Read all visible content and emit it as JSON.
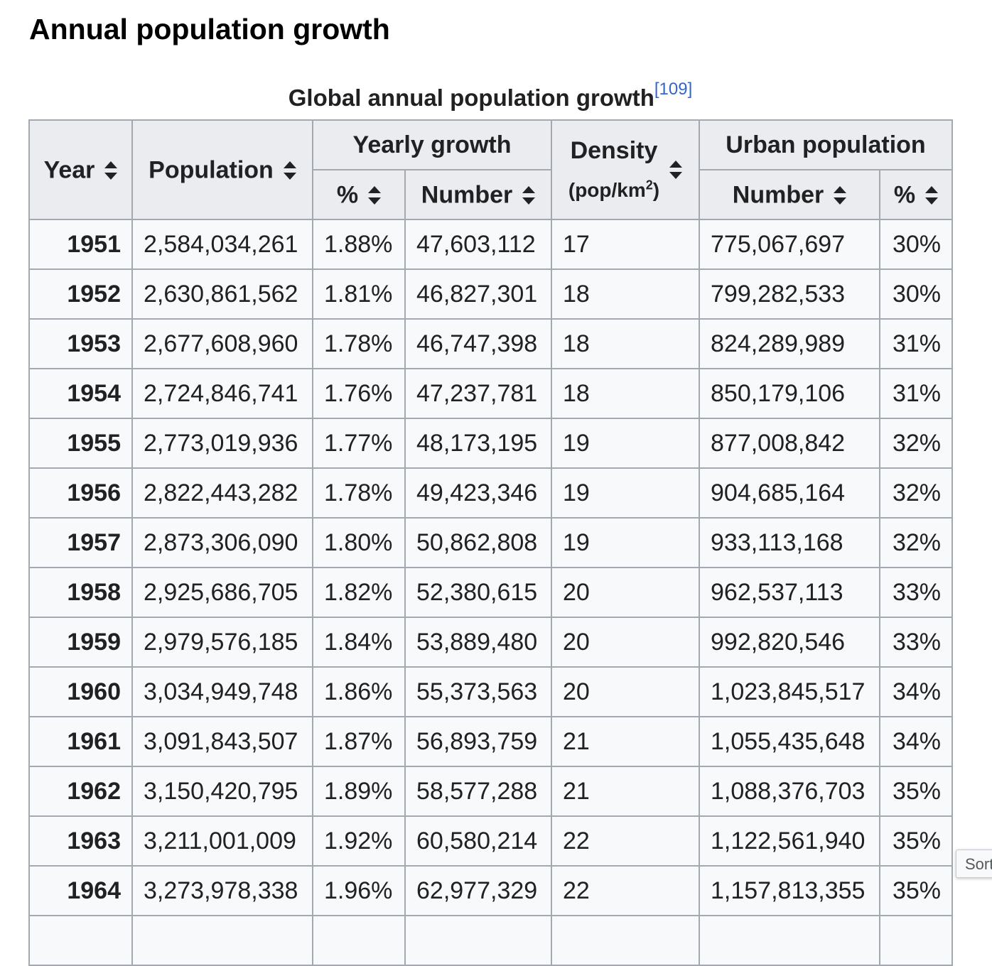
{
  "heading": "Annual population growth",
  "caption": {
    "text": "Global annual population growth",
    "ref": "[109]"
  },
  "headers": {
    "year": "Year",
    "population": "Population",
    "yearly_growth": "Yearly growth",
    "yearly_pct": "%",
    "yearly_number": "Number",
    "density": "Density",
    "density_unit_prefix": "(pop/km",
    "density_unit_sup": "2",
    "density_unit_suffix": ")",
    "urban_population": "Urban population",
    "urban_number": "Number",
    "urban_pct": "%"
  },
  "rows": [
    {
      "year": "1951",
      "population": "2,584,034,261",
      "growth_pct": "1.88%",
      "growth_number": "47,603,112",
      "density": "17",
      "urban_number": "775,067,697",
      "urban_pct": "30%"
    },
    {
      "year": "1952",
      "population": "2,630,861,562",
      "growth_pct": "1.81%",
      "growth_number": "46,827,301",
      "density": "18",
      "urban_number": "799,282,533",
      "urban_pct": "30%"
    },
    {
      "year": "1953",
      "population": "2,677,608,960",
      "growth_pct": "1.78%",
      "growth_number": "46,747,398",
      "density": "18",
      "urban_number": "824,289,989",
      "urban_pct": "31%"
    },
    {
      "year": "1954",
      "population": "2,724,846,741",
      "growth_pct": "1.76%",
      "growth_number": "47,237,781",
      "density": "18",
      "urban_number": "850,179,106",
      "urban_pct": "31%"
    },
    {
      "year": "1955",
      "population": "2,773,019,936",
      "growth_pct": "1.77%",
      "growth_number": "48,173,195",
      "density": "19",
      "urban_number": "877,008,842",
      "urban_pct": "32%"
    },
    {
      "year": "1956",
      "population": "2,822,443,282",
      "growth_pct": "1.78%",
      "growth_number": "49,423,346",
      "density": "19",
      "urban_number": "904,685,164",
      "urban_pct": "32%"
    },
    {
      "year": "1957",
      "population": "2,873,306,090",
      "growth_pct": "1.80%",
      "growth_number": "50,862,808",
      "density": "19",
      "urban_number": "933,113,168",
      "urban_pct": "32%"
    },
    {
      "year": "1958",
      "population": "2,925,686,705",
      "growth_pct": "1.82%",
      "growth_number": "52,380,615",
      "density": "20",
      "urban_number": "962,537,113",
      "urban_pct": "33%"
    },
    {
      "year": "1959",
      "population": "2,979,576,185",
      "growth_pct": "1.84%",
      "growth_number": "53,889,480",
      "density": "20",
      "urban_number": "992,820,546",
      "urban_pct": "33%"
    },
    {
      "year": "1960",
      "population": "3,034,949,748",
      "growth_pct": "1.86%",
      "growth_number": "55,373,563",
      "density": "20",
      "urban_number": "1,023,845,517",
      "urban_pct": "34%"
    },
    {
      "year": "1961",
      "population": "3,091,843,507",
      "growth_pct": "1.87%",
      "growth_number": "56,893,759",
      "density": "21",
      "urban_number": "1,055,435,648",
      "urban_pct": "34%"
    },
    {
      "year": "1962",
      "population": "3,150,420,795",
      "growth_pct": "1.89%",
      "growth_number": "58,577,288",
      "density": "21",
      "urban_number": "1,088,376,703",
      "urban_pct": "35%"
    },
    {
      "year": "1963",
      "population": "3,211,001,009",
      "growth_pct": "1.92%",
      "growth_number": "60,580,214",
      "density": "22",
      "urban_number": "1,122,561,940",
      "urban_pct": "35%"
    },
    {
      "year": "1964",
      "population": "3,273,978,338",
      "growth_pct": "1.96%",
      "growth_number": "62,977,329",
      "density": "22",
      "urban_number": "1,157,813,355",
      "urban_pct": "35%"
    }
  ],
  "tooltip": "Sort"
}
